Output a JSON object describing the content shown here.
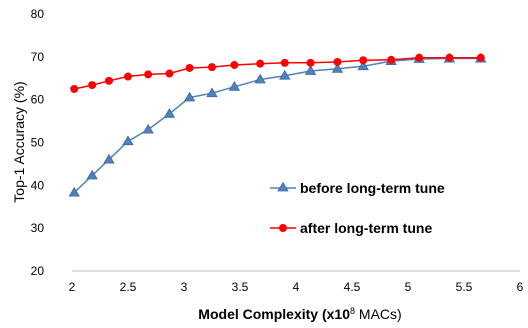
{
  "chart_data": {
    "type": "line",
    "xlabel_parts": {
      "prefix": "Model Complexity (x10",
      "superscript": "8",
      "suffix": " MACs)"
    },
    "ylabel": "Top-1 Accuracy (%)",
    "xlim": [
      2,
      6
    ],
    "ylim": [
      20,
      80
    ],
    "xticks": [
      "2",
      "2.5",
      "3",
      "3.5",
      "4",
      "4.5",
      "5",
      "5.5",
      "6"
    ],
    "yticks": [
      "20",
      "30",
      "40",
      "50",
      "60",
      "70",
      "80"
    ],
    "grid": false,
    "legend_position": "lower-right",
    "series": [
      {
        "name": "before long-term tune",
        "color": "#4f81bd",
        "marker": "triangle",
        "x": [
          2.02,
          2.18,
          2.33,
          2.5,
          2.68,
          2.87,
          3.05,
          3.25,
          3.45,
          3.68,
          3.9,
          4.13,
          4.37,
          4.6,
          4.85,
          5.1,
          5.37,
          5.65
        ],
        "y": [
          38.3,
          42.3,
          46.0,
          50.3,
          53.0,
          56.7,
          60.5,
          61.5,
          63.0,
          64.7,
          65.6,
          66.7,
          67.2,
          67.8,
          69.0,
          69.5,
          69.6,
          69.6
        ]
      },
      {
        "name": "after long-term tune",
        "color": "#ff0000",
        "marker": "circle",
        "x": [
          2.02,
          2.18,
          2.33,
          2.5,
          2.68,
          2.87,
          3.05,
          3.25,
          3.45,
          3.68,
          3.9,
          4.13,
          4.37,
          4.6,
          4.85,
          5.1,
          5.37,
          5.65
        ],
        "y": [
          62.5,
          63.4,
          64.4,
          65.4,
          65.9,
          66.1,
          67.4,
          67.6,
          68.1,
          68.4,
          68.6,
          68.6,
          68.8,
          69.2,
          69.3,
          69.8,
          69.8,
          69.8
        ]
      }
    ]
  }
}
